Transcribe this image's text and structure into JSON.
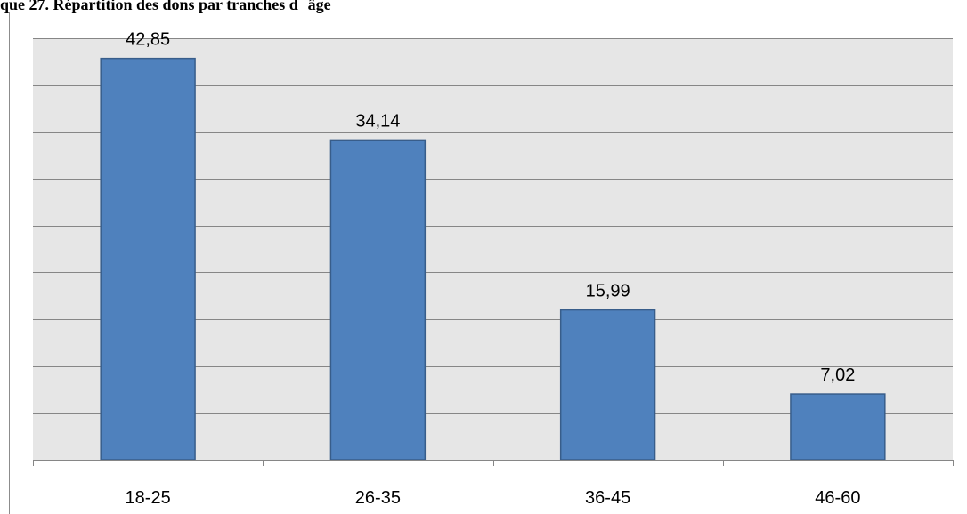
{
  "title": "que 27. Répartition des dons par tranches dâge",
  "colors": {
    "plot_background": "#e6e6e6",
    "bar_fill": "#4f81bd",
    "bar_stroke": "#385d8a",
    "gridline": "#868686"
  },
  "chart_data": {
    "type": "bar",
    "title": "que 27. Répartition des dons par tranches dâge",
    "xlabel": "",
    "ylabel": "",
    "categories": [
      "18-25",
      "26-35",
      "36-45",
      "46-60"
    ],
    "values": [
      42.85,
      34.14,
      15.99,
      7.02
    ],
    "value_labels": [
      "42,85",
      "34,14",
      "15,99",
      "7,02"
    ],
    "ylim": [
      0,
      45
    ],
    "grid": true,
    "legend": "none"
  }
}
